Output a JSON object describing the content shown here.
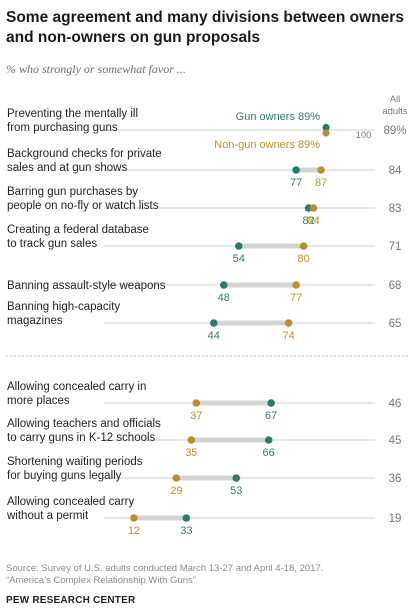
{
  "title": "Some agreement and many divisions between owners and non-owners  on gun proposals",
  "subtitle": "% who strongly or somewhat favor ...",
  "source_note": "Source: Survey of U.S. adults conducted March 13-27 and April 4-18, 2017.",
  "report_note": "“America’s Complex Relationship With Guns”",
  "organization": "PEW RESEARCH CENTER",
  "colors": {
    "gun_owners": "#2e7a6c",
    "non_gun_owners": "#b8912f",
    "range_bar": "#d4d4d4",
    "axis": "#cfcfcf",
    "text_muted": "#777777"
  },
  "chart_data": {
    "type": "dot",
    "x_range": [
      0,
      100
    ],
    "axis_end_label": "100",
    "all_adults_header": [
      "All",
      "adults"
    ],
    "series": [
      {
        "name": "Gun owners",
        "key": "owners"
      },
      {
        "name": "Non-gun owners",
        "key": "non_owners"
      }
    ],
    "series_label_texts": {
      "owners": "Gun owners 89%",
      "non_owners": "Non-gun owners 89%"
    },
    "groups": [
      {
        "rows": [
          {
            "label": [
              "Preventing the mentally ill",
              "from purchasing guns"
            ],
            "owners": 89,
            "non_owners": 89,
            "all_adults": "89%"
          },
          {
            "label": [
              "Background checks for private",
              "sales and at gun shows"
            ],
            "owners": 77,
            "non_owners": 87,
            "all_adults": "84"
          },
          {
            "label": [
              "Barring gun purchases by",
              "people on no-fly or watch lists"
            ],
            "owners": 82,
            "non_owners": 84,
            "all_adults": "83"
          },
          {
            "label": [
              "Creating a federal database",
              "to track gun sales"
            ],
            "owners": 54,
            "non_owners": 80,
            "all_adults": "71"
          },
          {
            "label": [
              "Banning assault-style weapons"
            ],
            "owners": 48,
            "non_owners": 77,
            "all_adults": "68"
          },
          {
            "label": [
              "Banning high-capacity",
              "magazines"
            ],
            "owners": 44,
            "non_owners": 74,
            "all_adults": "65"
          }
        ]
      },
      {
        "rows": [
          {
            "label": [
              "Allowing concealed carry in",
              "more places"
            ],
            "owners": 67,
            "non_owners": 37,
            "all_adults": "46"
          },
          {
            "label": [
              "Allowing teachers and officials",
              "to carry guns in K-12 schools"
            ],
            "owners": 66,
            "non_owners": 35,
            "all_adults": "45"
          },
          {
            "label": [
              "Shortening waiting periods",
              "for buying guns legally"
            ],
            "owners": 53,
            "non_owners": 29,
            "all_adults": "36"
          },
          {
            "label": [
              "Allowing concealed carry",
              "without a permit"
            ],
            "owners": 33,
            "non_owners": 12,
            "all_adults": "19"
          }
        ]
      }
    ]
  }
}
